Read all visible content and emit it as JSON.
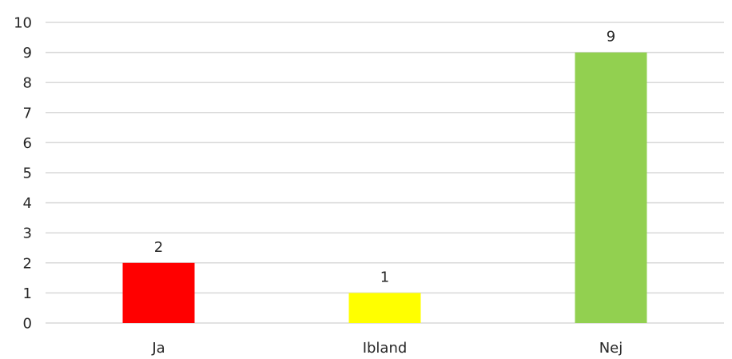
{
  "chart_data": {
    "type": "bar",
    "categories": [
      "Ja",
      "Ibland",
      "Nej"
    ],
    "values": [
      2,
      1,
      9
    ],
    "colors": [
      "#ff0000",
      "#ffff00",
      "#92d050"
    ],
    "ylim": [
      0,
      10
    ],
    "yticks": [
      "0",
      "1",
      "2",
      "3",
      "4",
      "5",
      "6",
      "7",
      "8",
      "9",
      "10"
    ],
    "data_labels": [
      "2",
      "1",
      "9"
    ],
    "grid": true,
    "gridline_color": "#d9d9d9",
    "text_color": "#262626"
  }
}
